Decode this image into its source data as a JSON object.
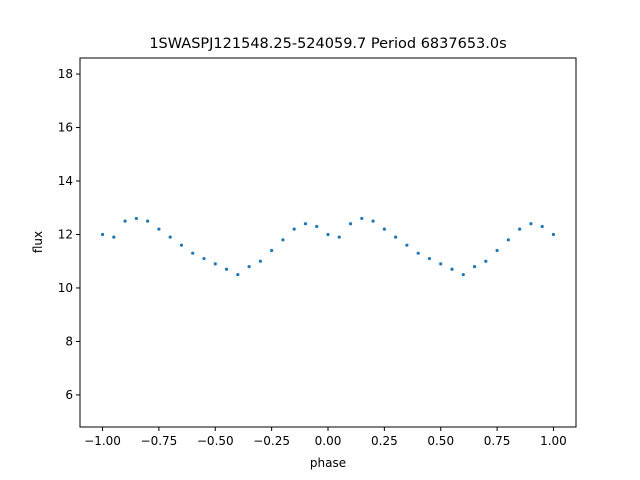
{
  "chart_data": {
    "type": "scatter",
    "title": "1SWASPJ121548.25-524059.7 Period 6837653.0s",
    "xlabel": "phase",
    "ylabel": "flux",
    "xlim": [
      -1.1,
      1.1
    ],
    "ylim": [
      4.8,
      18.6
    ],
    "xticks": [
      -1.0,
      -0.75,
      -0.5,
      -0.25,
      0.0,
      0.25,
      0.5,
      0.75,
      1.0
    ],
    "xtick_labels": [
      "−1.00",
      "−0.75",
      "−0.50",
      "−0.25",
      "0.00",
      "0.25",
      "0.50",
      "0.75",
      "1.00"
    ],
    "yticks": [
      6,
      8,
      10,
      12,
      14,
      16,
      18
    ],
    "ytick_labels": [
      "6",
      "8",
      "10",
      "12",
      "14",
      "16",
      "18"
    ],
    "grid": false,
    "legend": "none",
    "marker_color": "#1f77b4",
    "series": [
      {
        "x": [
          -1.0,
          -0.95,
          -0.9,
          -0.85,
          -0.8,
          -0.75,
          -0.7,
          -0.65,
          -0.6,
          -0.55,
          -0.5,
          -0.45,
          -0.4,
          -0.35,
          -0.3,
          -0.25,
          -0.2,
          -0.15,
          -0.1,
          -0.05,
          0.0,
          0.05,
          0.1,
          0.15,
          0.2,
          0.25,
          0.3,
          0.35,
          0.4,
          0.45,
          0.5,
          0.55,
          0.6,
          0.65,
          0.7,
          0.75,
          0.8,
          0.85,
          0.9,
          0.95,
          1.0
        ],
        "y": [
          12.0,
          11.9,
          12.5,
          12.6,
          12.5,
          12.2,
          11.9,
          11.6,
          11.3,
          11.1,
          10.9,
          10.7,
          10.5,
          10.8,
          11.0,
          11.4,
          11.8,
          12.2,
          12.4,
          12.3,
          12.0,
          11.9,
          12.4,
          12.6,
          12.5,
          12.2,
          11.9,
          11.6,
          11.3,
          11.1,
          10.9,
          10.7,
          10.5,
          10.8,
          11.0,
          11.4,
          11.8,
          12.2,
          12.4,
          12.3,
          12.0
        ]
      }
    ]
  }
}
